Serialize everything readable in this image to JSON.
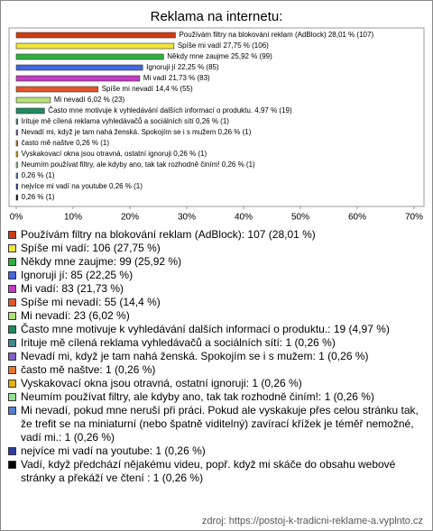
{
  "chart_data": {
    "type": "hbar",
    "title": "Reklama na internetu:",
    "categories": [
      "Používám filtry na blokování reklam (AdBlock): 107 (28,01 %)",
      "Spíše mi vadí: 106 (27,75 %)",
      "Někdy mne zaujme: 99 (25,92 %)",
      "Ignoruji jí: 85 (22,25 %)",
      "Mi vadí: 83 (21,73 %)",
      "Spíše mi nevadí: 55 (14,4 %)",
      "Mi nevadí: 23 (6,02 %)",
      "Často mne motivuje k vyhledávání dalších informací o produktu.: 19 (4,97 %)",
      "Irituje mě cílená reklama vyhledávačů a sociálních sítí: 1 (0,26 %)",
      "Nevadí mi, když je tam nahá ženská. Spokojím se i s mužem: 1 (0,26 %)",
      "často mě naštve: 1 (0,26 %)",
      "Vyskakovací okna jsou otravná, ostatní ignoruji: 1 (0,26 %)",
      "Neumím používat filtry, ale kdyby ano, tak tak rozhodně činím!: 1 (0,26 %)",
      "Mi nevadí, pokud mne neruší při práci. Pokud ale vyskakuje přes celou stránku tak, že trefit se na miniaturní (nebo špatně viditelný) zavírací křížek je téměř nemožné, vadí mi.: 1 (0,26 %)",
      "nejvíce mi vadí na youtube: 1 (0,26 %)",
      "Vadí, když předchází nějakému videu, popř. když mi skáče do obsahu webové stránky a překáží ve čtení : 1 (0,26 %)"
    ],
    "values": [
      28.01,
      27.75,
      25.92,
      22.25,
      21.73,
      14.4,
      6.02,
      4.97,
      0.26,
      0.26,
      0.26,
      0.26,
      0.26,
      0.26,
      0.26,
      0.26
    ],
    "value_labels": [
      "Používám filtry na blokování reklam (AdBlock) 28,01 % (107)",
      "Spíše mi vadí 27,75 % (106)",
      "Někdy mne zaujme 25,92 % (99)",
      "Ignoruji jí 22,25 % (85)",
      "Mi vadí 21,73 % (83)",
      "Spíše mi nevadí 14,4 % (55)",
      "Mi nevadí 6,02 % (23)",
      "Často mne motivuje k vyhledávání dalších informací o produktu. 4,97 % (19)",
      "Irituje mě cílená reklama vyhledávačů a sociálních sítí 0,26 % (1)",
      "Nevadí mi, když je tam nahá ženská. Spokojím se i s mužem 0,26 % (1)",
      "často mě naštve 0,26 % (1)",
      "Vyskakovací okna jsou otravná, ostatní ignoruji 0,26 % (1)",
      "Neumím používat filtry, ale kdyby ano, tak tak rozhodně činím! 0,26 % (1)",
      "0,26 % (1)",
      "nejvíce mi vadí na youtube 0,26 % (1)",
      "0,26 % (1)"
    ],
    "colors": [
      "#d03a12",
      "#f2e43a",
      "#30b040",
      "#4466e0",
      "#c23cc2",
      "#e2562a",
      "#b4e27a",
      "#1f8a5e",
      "#3f8a8a",
      "#8062c4",
      "#e8772a",
      "#e4b400",
      "#90e090",
      "#5082d2",
      "#2c3ea0",
      "#000000"
    ],
    "xlim": [
      0,
      70
    ],
    "xticks": [
      {
        "value": 0,
        "label": "0%"
      },
      {
        "value": 10,
        "label": "10%"
      },
      {
        "value": 20,
        "label": "20%"
      },
      {
        "value": 30,
        "label": "30%"
      },
      {
        "value": 40,
        "label": "40%"
      },
      {
        "value": 50,
        "label": "50%"
      },
      {
        "value": 60,
        "label": "60%"
      },
      {
        "value": 70,
        "label": "70%"
      }
    ],
    "source": "zdroj: https://postoj-k-tradicni-reklame-a.vyplnto.cz"
  }
}
